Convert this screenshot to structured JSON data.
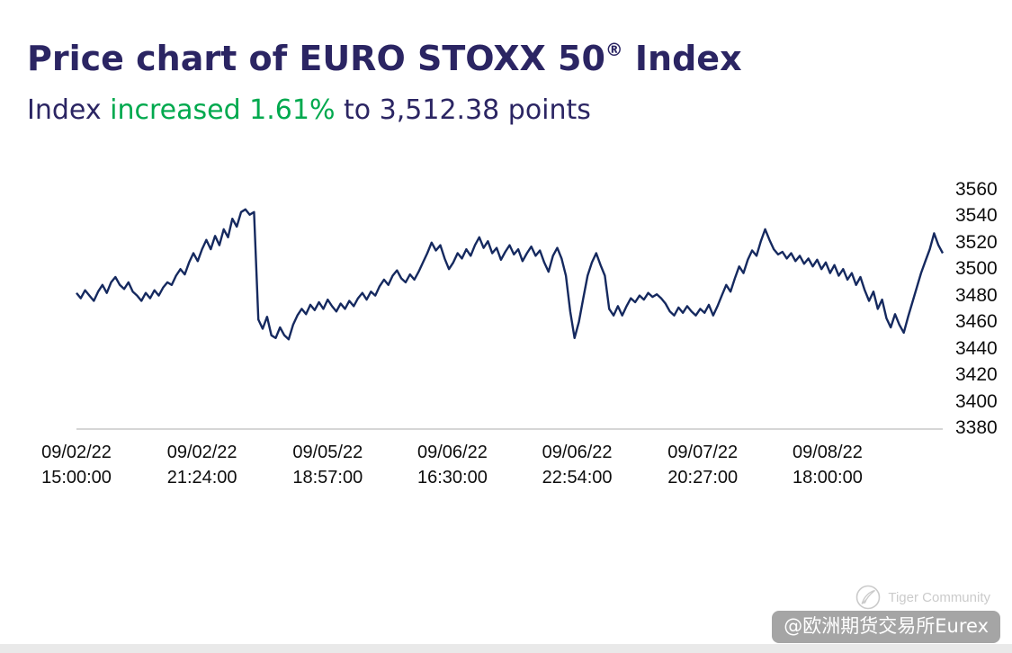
{
  "header": {
    "title_main": "Price chart of EURO STOXX 50",
    "title_sup": "®",
    "title_end": " Index",
    "subtitle_prefix": "Index ",
    "subtitle_change": "increased 1.61%",
    "subtitle_suffix": " to 3,512.38 points"
  },
  "watermark": {
    "community": "Tiger Community",
    "handle": "@欧洲期货交易所Eurex"
  },
  "chart_data": {
    "type": "line",
    "title": "Price chart of EURO STOXX 50® Index",
    "series_name": "EURO STOXX 50 Index price",
    "last_value": 3512.38,
    "change_pct": "+1.61%",
    "line_color": "#15295f",
    "ylim": [
      3380,
      3570
    ],
    "grid": false,
    "legend": "none",
    "y_ticks": [
      3560,
      3540,
      3520,
      3500,
      3480,
      3460,
      3440,
      3420,
      3400,
      3380
    ],
    "x_ticks": [
      {
        "date": "09/02/22",
        "time": "15:00:00",
        "pos": 0.0
      },
      {
        "date": "09/02/22",
        "time": "21:24:00",
        "pos": 0.145
      },
      {
        "date": "09/05/22",
        "time": "18:57:00",
        "pos": 0.29
      },
      {
        "date": "09/06/22",
        "time": "16:30:00",
        "pos": 0.434
      },
      {
        "date": "09/06/22",
        "time": "22:54:00",
        "pos": 0.578
      },
      {
        "date": "09/07/22",
        "time": "20:27:00",
        "pos": 0.723
      },
      {
        "date": "09/08/22",
        "time": "18:00:00",
        "pos": 0.867
      }
    ],
    "values": [
      3482,
      3478,
      3484,
      3480,
      3476,
      3483,
      3488,
      3482,
      3490,
      3494,
      3488,
      3485,
      3490,
      3483,
      3480,
      3476,
      3482,
      3478,
      3484,
      3480,
      3486,
      3490,
      3488,
      3495,
      3500,
      3496,
      3505,
      3512,
      3506,
      3515,
      3522,
      3515,
      3525,
      3518,
      3530,
      3524,
      3538,
      3532,
      3543,
      3545,
      3541,
      3543,
      3462,
      3455,
      3464,
      3450,
      3448,
      3456,
      3450,
      3447,
      3458,
      3465,
      3470,
      3466,
      3473,
      3469,
      3475,
      3470,
      3477,
      3472,
      3468,
      3474,
      3470,
      3476,
      3472,
      3478,
      3482,
      3477,
      3483,
      3480,
      3487,
      3492,
      3488,
      3495,
      3499,
      3493,
      3490,
      3496,
      3492,
      3498,
      3505,
      3512,
      3520,
      3514,
      3518,
      3508,
      3500,
      3505,
      3512,
      3508,
      3515,
      3510,
      3518,
      3524,
      3516,
      3521,
      3512,
      3516,
      3507,
      3513,
      3518,
      3511,
      3515,
      3506,
      3512,
      3517,
      3510,
      3514,
      3505,
      3498,
      3510,
      3516,
      3508,
      3495,
      3468,
      3448,
      3460,
      3478,
      3495,
      3505,
      3512,
      3503,
      3495,
      3470,
      3465,
      3472,
      3465,
      3472,
      3478,
      3475,
      3480,
      3477,
      3482,
      3479,
      3481,
      3478,
      3474,
      3468,
      3465,
      3471,
      3467,
      3472,
      3468,
      3465,
      3470,
      3467,
      3473,
      3465,
      3472,
      3480,
      3488,
      3483,
      3493,
      3502,
      3497,
      3507,
      3514,
      3510,
      3521,
      3530,
      3522,
      3515,
      3511,
      3513,
      3508,
      3512,
      3506,
      3510,
      3504,
      3508,
      3502,
      3507,
      3500,
      3505,
      3497,
      3503,
      3495,
      3500,
      3492,
      3497,
      3488,
      3494,
      3484,
      3476,
      3483,
      3470,
      3477,
      3463,
      3456,
      3466,
      3458,
      3452,
      3464,
      3475,
      3486,
      3497,
      3506,
      3515,
      3527,
      3518,
      3512
    ]
  }
}
